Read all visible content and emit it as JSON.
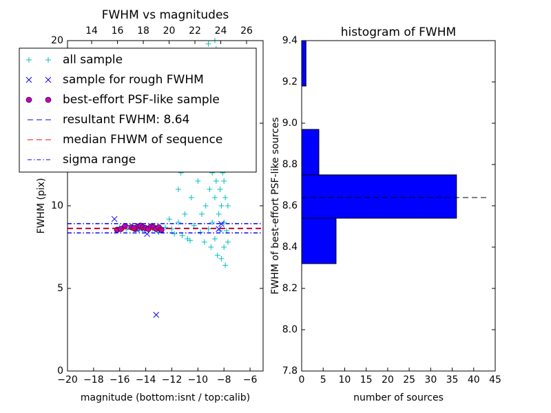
{
  "chart_data": [
    {
      "type": "scatter",
      "title": "FWHM vs magnitudes",
      "xlabel": "magnitude (bottom:isnt / top:calib)",
      "ylabel": "FWHM (pix)",
      "xlim": [
        -20,
        -5
      ],
      "ylim": [
        0,
        20
      ],
      "xticks": [
        {
          "value": -20,
          "label": "−20"
        },
        {
          "value": -18,
          "label": "−18"
        },
        {
          "value": -16,
          "label": "−16"
        },
        {
          "value": -14,
          "label": "−14"
        },
        {
          "value": -12,
          "label": "−12"
        },
        {
          "value": -10,
          "label": "−10"
        },
        {
          "value": -8,
          "label": "−8"
        },
        {
          "value": -6,
          "label": "−6"
        }
      ],
      "yticks": [
        0,
        5,
        10,
        15,
        20
      ],
      "x2lim": [
        12.13,
        27.28
      ],
      "x2ticks": [
        14,
        16,
        18,
        20,
        22,
        24,
        26
      ],
      "legend": "upper left",
      "grid": false,
      "series": [
        {
          "name": "all sample",
          "marker": "plus",
          "color": "#00bfbf",
          "x": [
            -16.0,
            -15.5,
            -15.0,
            -14.5,
            -14.0,
            -13.5,
            -13.0,
            -12.5,
            -12.0,
            -11.8,
            -11.5,
            -11.2,
            -11.0,
            -10.8,
            -10.5,
            -10.3,
            -10.0,
            -9.8,
            -9.6,
            -9.5,
            -9.4,
            -9.3,
            -9.2,
            -9.1,
            -9.0,
            -9.0,
            -8.9,
            -8.9,
            -8.8,
            -8.8,
            -8.7,
            -8.7,
            -8.6,
            -8.6,
            -8.6,
            -8.5,
            -8.5,
            -8.5,
            -8.4,
            -8.4,
            -8.3,
            -8.3,
            -8.3,
            -8.2,
            -8.2,
            -8.2,
            -8.1,
            -8.1,
            -8.0,
            -8.0,
            -8.0,
            -7.9,
            -7.9,
            -7.9,
            -7.8,
            -7.8,
            -7.7,
            -7.7,
            -11.5,
            -11.3,
            -10.2,
            -9.7,
            -12.2,
            -10.6,
            -8.7,
            -9.2
          ],
          "values": [
            8.7,
            8.6,
            8.8,
            8.5,
            8.7,
            8.6,
            8.4,
            8.7,
            8.6,
            8.3,
            9.0,
            8.2,
            9.5,
            8.0,
            10.5,
            8.8,
            11.5,
            8.4,
            12.5,
            7.8,
            10.0,
            14.0,
            8.6,
            11.0,
            15.5,
            7.5,
            12.0,
            9.0,
            17.0,
            13.5,
            10.5,
            8.0,
            19.5,
            14.5,
            11.5,
            7.0,
            16.0,
            12.5,
            9.5,
            13.0,
            18.0,
            11.0,
            8.5,
            14.0,
            10.0,
            6.8,
            12.0,
            15.0,
            9.0,
            11.5,
            7.5,
            13.0,
            10.5,
            6.4,
            8.5,
            12.5,
            10.0,
            7.8,
            11.0,
            12.0,
            13.8,
            9.5,
            9.2,
            7.9,
            20.0,
            19.8
          ]
        },
        {
          "name": "sample for rough FWHM",
          "marker": "x",
          "color": "#0000ff",
          "x": [
            -16.4,
            -13.2,
            -13.9,
            -14.4,
            -15.2,
            -12.8,
            -8.4,
            -8.2
          ],
          "values": [
            9.2,
            3.4,
            8.3,
            8.6,
            8.7,
            8.5,
            8.6,
            8.9
          ]
        },
        {
          "name": "best-effort PSF-like sample",
          "marker": "circle",
          "color": "#bf00bf",
          "x": [
            -16.2,
            -15.6,
            -15.1,
            -14.8,
            -14.6,
            -14.4,
            -14.2,
            -14.0,
            -13.8,
            -13.6,
            -13.4,
            -13.2,
            -13.0,
            -12.8,
            -15.9,
            -14.9
          ],
          "values": [
            8.55,
            8.75,
            8.7,
            8.6,
            8.75,
            8.8,
            8.7,
            8.65,
            8.6,
            8.75,
            8.7,
            8.6,
            8.7,
            8.55,
            8.6,
            8.65
          ]
        }
      ],
      "hlines": [
        {
          "name": "resultant FWHM: 8.64",
          "color": "#0000ff",
          "style": "dashed",
          "values": [
            8.64
          ]
        },
        {
          "name": "median FHWM of sequence",
          "color": "#ff0000",
          "style": "dashed",
          "values": [
            8.62
          ]
        },
        {
          "name": "sigma range",
          "color": "#0000ff",
          "style": "dashdot",
          "values": [
            8.36,
            8.92
          ]
        }
      ]
    },
    {
      "type": "histogram",
      "orientation": "horizontal",
      "title": "histogram of FWHM",
      "xlabel": "number of sources",
      "ylabel": "FWHM of best-effort PSF-like sources",
      "xlim": [
        0,
        45
      ],
      "ylim": [
        7.8,
        9.4
      ],
      "xticks": [
        0,
        5,
        10,
        15,
        20,
        25,
        30,
        35,
        40,
        45
      ],
      "yticks": [
        7.8,
        {
          "value": 8,
          "label": "8.0"
        },
        8.2,
        8.4,
        8.6,
        8.8,
        {
          "value": 9,
          "label": "9.0"
        },
        9.2,
        9.4
      ],
      "bins": [
        8.32,
        8.54,
        8.75,
        8.97,
        9.18,
        9.4
      ],
      "values": [
        8,
        36,
        4,
        0,
        1
      ],
      "color": "#0000ff",
      "hline": {
        "value": 8.64,
        "color": "#000000",
        "style": "dashed",
        "extent": 43
      }
    }
  ]
}
